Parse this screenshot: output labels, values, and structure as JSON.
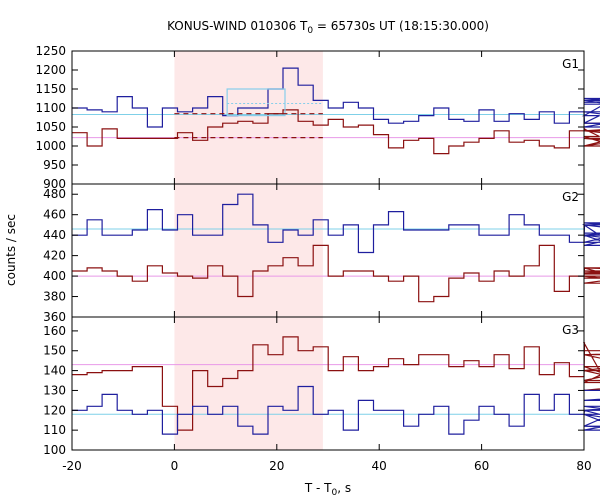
{
  "chart_data": {
    "type": "line",
    "title_prefix": "KONUS-WIND 010306 T",
    "title_sub": "0",
    "title_suffix": " = 65730s UT (18:15:30.000)",
    "ylabel": "counts / sec",
    "xlabel_prefix": "T - T",
    "xlabel_sub": "0",
    "xlabel_suffix": ", s",
    "xlim": [
      -20,
      80
    ],
    "x_ticks": [
      -20,
      0,
      20,
      40,
      60,
      80
    ],
    "x_tick_labels": [
      "-20",
      "0",
      "20",
      "40",
      "60",
      "80"
    ],
    "bin_width": 2.944,
    "bin_start": -20,
    "highlight": {
      "start": 0,
      "end": 29,
      "color": "#fde8e8"
    },
    "colors": {
      "blue": "#1f1f9e",
      "red": "#8b1010",
      "cyan": "#7fd0e8",
      "pink": "#e899e8",
      "frame": "#000000",
      "light_blue": "#87ceeb"
    },
    "panels": [
      {
        "name": "G1",
        "ylim": [
          900,
          1250
        ],
        "y_ticks": [
          900,
          950,
          1000,
          1050,
          1100,
          1150,
          1200,
          1250
        ],
        "y_tick_labels": [
          "900",
          "950",
          "1000",
          "1050",
          "1100",
          "1150",
          "1200",
          "1250"
        ],
        "blue_level": 1083,
        "pink_level": 1022,
        "blue_values": [
          1100,
          1095,
          1090,
          1130,
          1100,
          1050,
          1100,
          1090,
          1100,
          1130,
          1080,
          1100,
          1100,
          1150,
          1205,
          1160,
          1120,
          1100,
          1115,
          1100,
          1070,
          1060,
          1065,
          1080,
          1100,
          1070,
          1065,
          1095,
          1065,
          1085,
          1070,
          1090,
          1060,
          1090,
          1060,
          1080,
          1125,
          1115,
          1120,
          1090,
          1060,
          1060,
          1050,
          1110
        ],
        "red_values": [
          1035,
          1000,
          1045,
          1020,
          1020,
          1020,
          1020,
          1035,
          1015,
          1050,
          1060,
          1065,
          1060,
          1085,
          1095,
          1065,
          1055,
          1070,
          1050,
          1055,
          1030,
          995,
          1015,
          1020,
          980,
          1000,
          1010,
          1020,
          1040,
          1010,
          1015,
          1000,
          995,
          1040,
          1045,
          1025,
          1000,
          1000,
          1040,
          1020,
          1000,
          1040,
          1060,
          1060
        ],
        "cyan_box": {
          "x0": 10.3,
          "x1": 21.6,
          "y0": 1080,
          "y1": 1150
        },
        "dashed_red": [
          {
            "x0": 0,
            "x1": 29,
            "y": 1022
          },
          {
            "x0": 0,
            "x1": 29,
            "y": 1085
          }
        ],
        "dotted_cyan": [
          {
            "x0": 10.3,
            "x1": 29,
            "y": 1112
          }
        ]
      },
      {
        "name": "G2",
        "ylim": [
          360,
          490
        ],
        "y_ticks": [
          360,
          380,
          400,
          420,
          440,
          460,
          480
        ],
        "y_tick_labels": [
          "360",
          "380",
          "400",
          "420",
          "440",
          "460",
          "480"
        ],
        "blue_level": 446,
        "pink_level": 400,
        "blue_values": [
          440,
          455,
          440,
          440,
          445,
          465,
          445,
          460,
          440,
          440,
          470,
          480,
          450,
          433,
          445,
          440,
          455,
          440,
          450,
          423,
          450,
          463,
          445,
          445,
          445,
          450,
          450,
          440,
          440,
          460,
          450,
          440,
          440,
          433,
          450,
          440,
          430,
          440,
          433,
          450,
          440,
          450,
          452,
          442
        ],
        "red_values": [
          405,
          408,
          405,
          400,
          395,
          410,
          403,
          400,
          398,
          410,
          400,
          380,
          405,
          410,
          418,
          410,
          430,
          400,
          405,
          405,
          400,
          395,
          400,
          375,
          380,
          398,
          403,
          395,
          405,
          400,
          410,
          430,
          385,
          400,
          408,
          408,
          400,
          400,
          393,
          403,
          408,
          405,
          398,
          402
        ]
      },
      {
        "name": "G3",
        "ylim": [
          100,
          167
        ],
        "y_ticks": [
          100,
          110,
          120,
          130,
          140,
          150,
          160
        ],
        "y_tick_labels": [
          "100",
          "110",
          "120",
          "130",
          "140",
          "150",
          "160"
        ],
        "blue_level": 118,
        "pink_level": 143,
        "blue_values": [
          120,
          122,
          128,
          120,
          118,
          120,
          108,
          118,
          122,
          118,
          122,
          112,
          108,
          122,
          120,
          132,
          118,
          120,
          110,
          125,
          120,
          120,
          112,
          118,
          122,
          108,
          115,
          122,
          118,
          112,
          128,
          120,
          128,
          118,
          120,
          118,
          112,
          122,
          118,
          112,
          110,
          120,
          125,
          130
        ],
        "red_values": [
          138,
          139,
          140,
          140,
          142,
          142,
          122,
          110,
          140,
          132,
          136,
          140,
          153,
          148,
          157,
          150,
          152,
          140,
          147,
          140,
          142,
          146,
          143,
          148,
          148,
          142,
          145,
          142,
          148,
          141,
          152,
          138,
          144,
          137,
          154,
          140,
          142,
          134,
          148,
          140,
          130,
          135,
          148,
          150
        ]
      }
    ]
  }
}
